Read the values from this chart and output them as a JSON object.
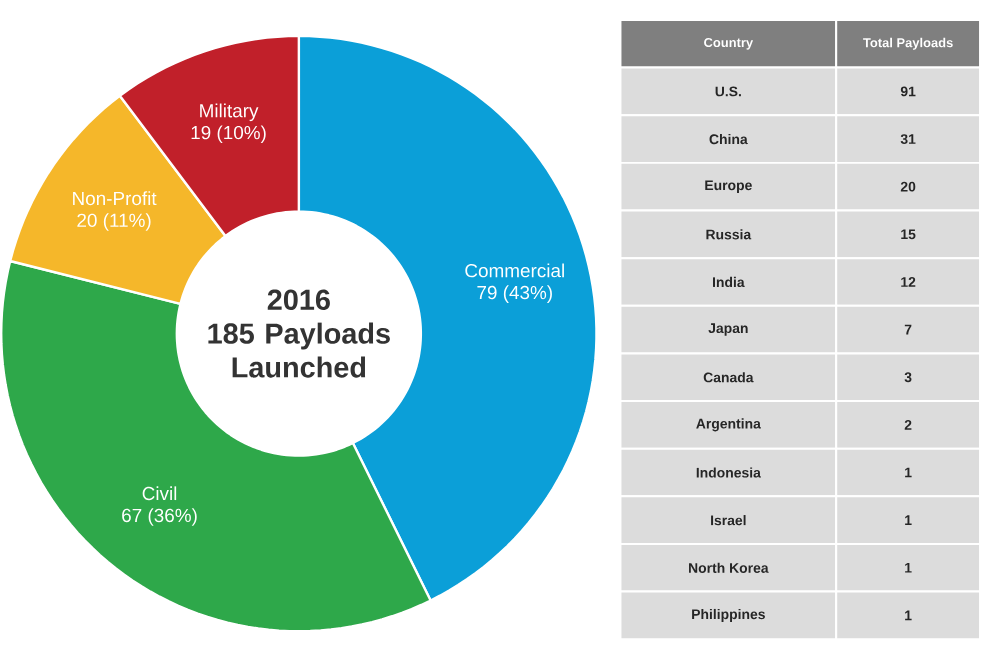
{
  "chart_data": [
    {
      "type": "donut",
      "title": "2016",
      "subtitle": "185 Payloads Launched",
      "categories": [
        "Commercial",
        "Civil",
        "Non-Profit",
        "Military"
      ],
      "values": [
        79,
        67,
        20,
        19
      ],
      "value_labels": [
        "79 (43%)",
        "67 (36%)",
        "20 (11%)",
        "19 (10%)"
      ],
      "colors": [
        "#0b9fd8",
        "#2ea84a",
        "#f5b72a",
        "#c1202a"
      ]
    },
    {
      "type": "other",
      "xlabel": "Country",
      "ylabel": "Total Payloads",
      "categories": [
        "U.S.",
        "China",
        "Europe",
        "Russia",
        "India",
        "Japan",
        "Canada",
        "Argentina",
        "Indonesia",
        "Israel",
        "North Korea",
        "Philippines"
      ],
      "values": [
        91,
        31,
        20,
        15,
        12,
        7,
        3,
        2,
        1,
        1,
        1,
        1
      ],
      "data_labels": true
    }
  ]
}
